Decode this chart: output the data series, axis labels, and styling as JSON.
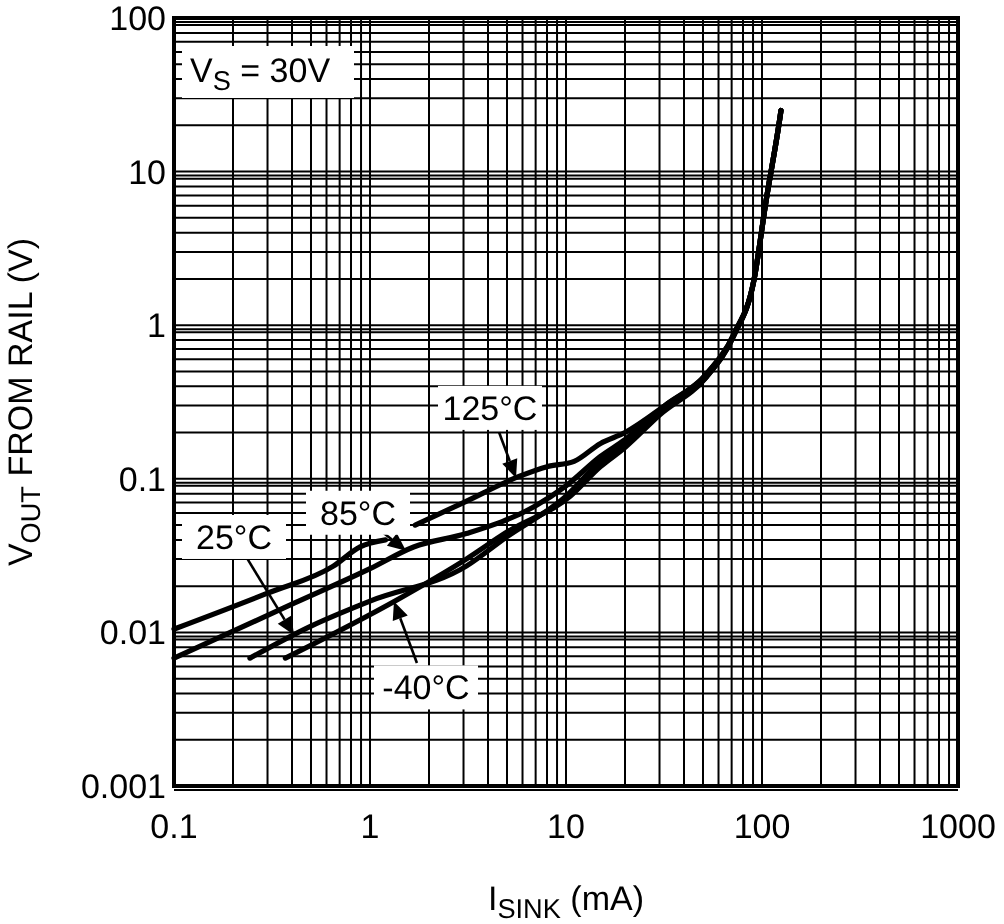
{
  "chart_data": {
    "type": "line",
    "xlabel": "I$_{SINK}$ (mA)",
    "ylabel": "V$_{OUT}$ FROM RAIL (V)",
    "log": "xy",
    "grid": true,
    "marker": "none",
    "line_style": "solid",
    "xlim": [
      0.1,
      1000
    ],
    "xticks": [
      0.1,
      1,
      10,
      100,
      1000
    ],
    "ylim": [
      0.001,
      100
    ],
    "yticks": [
      0.001,
      0.01,
      0.1,
      1,
      10,
      100
    ],
    "series": [
      {
        "name": "125°C",
        "color": "#000000",
        "x": [
          0.1,
          0.3,
          0.65,
          0.89,
          1.2,
          1.45,
          1.7,
          3,
          5.8,
          8,
          11,
          15,
          20,
          32,
          52,
          72,
          91,
          105,
          123,
          125
        ],
        "values": [
          0.0105,
          0.018,
          0.027,
          0.036,
          0.04,
          null,
          0.05,
          0.07,
          0.104,
          0.12,
          0.13,
          0.17,
          0.2,
          0.3,
          0.48,
          0.88,
          1.97,
          6.5,
          21.7,
          25
        ]
      },
      {
        "name": "85°C",
        "color": "#000000",
        "x": [
          0.1,
          0.41,
          1,
          1.67,
          3.1,
          6.9,
          10,
          15,
          20,
          32,
          52,
          72,
          91,
          105,
          123,
          125
        ],
        "values": [
          0.0068,
          0.0155,
          0.026,
          0.036,
          0.044,
          0.066,
          0.09,
          0.14,
          0.18,
          0.3,
          0.48,
          0.88,
          1.97,
          6.5,
          21.7,
          25
        ]
      },
      {
        "name": "25°C",
        "color": "#000000",
        "x": [
          0.244,
          0.5,
          1,
          3.1,
          5,
          10,
          15,
          20,
          32,
          52,
          72,
          91,
          105,
          123,
          125
        ],
        "values": [
          0.0068,
          0.011,
          0.016,
          0.027,
          0.042,
          0.077,
          0.13,
          0.17,
          0.29,
          0.46,
          0.86,
          1.97,
          6.5,
          21.7,
          25
        ]
      },
      {
        "name": "-40°C",
        "color": "#000000",
        "x": [
          0.37,
          1.4,
          3.1,
          5,
          10.5,
          15,
          20,
          30,
          52,
          72,
          91,
          105,
          123,
          125
        ],
        "values": [
          0.0068,
          0.0165,
          0.03,
          0.045,
          0.077,
          0.12,
          0.16,
          0.26,
          0.46,
          0.86,
          1.97,
          6.5,
          21.7,
          25
        ]
      }
    ],
    "annotations": [
      "V$_{S}$ = 30V"
    ]
  }
}
